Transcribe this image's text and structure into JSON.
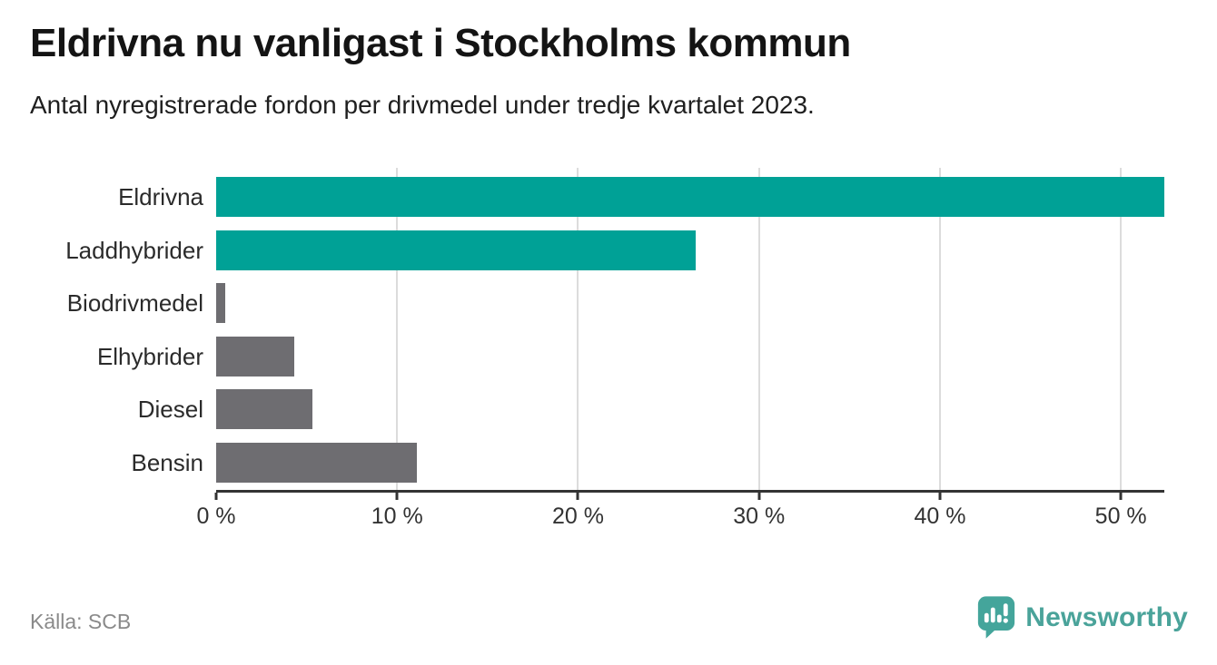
{
  "header": {
    "title": "Eldrivna nu vanligast i Stockholms kommun",
    "subtitle": "Antal nyregistrerade fordon per drivmedel under tredje kvartalet 2023."
  },
  "footer": {
    "source": "Källa: SCB",
    "brand_name": "Newsworthy",
    "brand_icon": "newsworthy-speech-bubble-bar-chart-icon"
  },
  "colors": {
    "highlight_teal": "#00a196",
    "neutral_gray": "#6e6d71",
    "gridline": "#dcdcdc",
    "axis": "#333333",
    "brand_teal": "#4aa39a",
    "source_text": "#8a8a8a"
  },
  "chart_data": {
    "type": "bar",
    "orientation": "horizontal",
    "title": "Eldrivna nu vanligast i Stockholms kommun",
    "subtitle": "Antal nyregistrerade fordon per drivmedel under tredje kvartalet 2023.",
    "categories": [
      "Eldrivna",
      "Laddhybrider",
      "Biodrivmedel",
      "Elhybrider",
      "Diesel",
      "Bensin"
    ],
    "values": [
      52.4,
      26.5,
      0.5,
      4.3,
      5.3,
      11.1
    ],
    "unit": "%",
    "bar_colors": [
      "#00a196",
      "#00a196",
      "#6e6d71",
      "#6e6d71",
      "#6e6d71",
      "#6e6d71"
    ],
    "xlabel": "",
    "ylabel": "",
    "xlim": [
      0,
      52.4
    ],
    "x_ticks": [
      0,
      10,
      20,
      30,
      40,
      50
    ],
    "x_tick_labels": [
      "0 %",
      "10 %",
      "20 %",
      "30 %",
      "40 %",
      "50 %"
    ],
    "grid": "vertical",
    "legend": false
  }
}
